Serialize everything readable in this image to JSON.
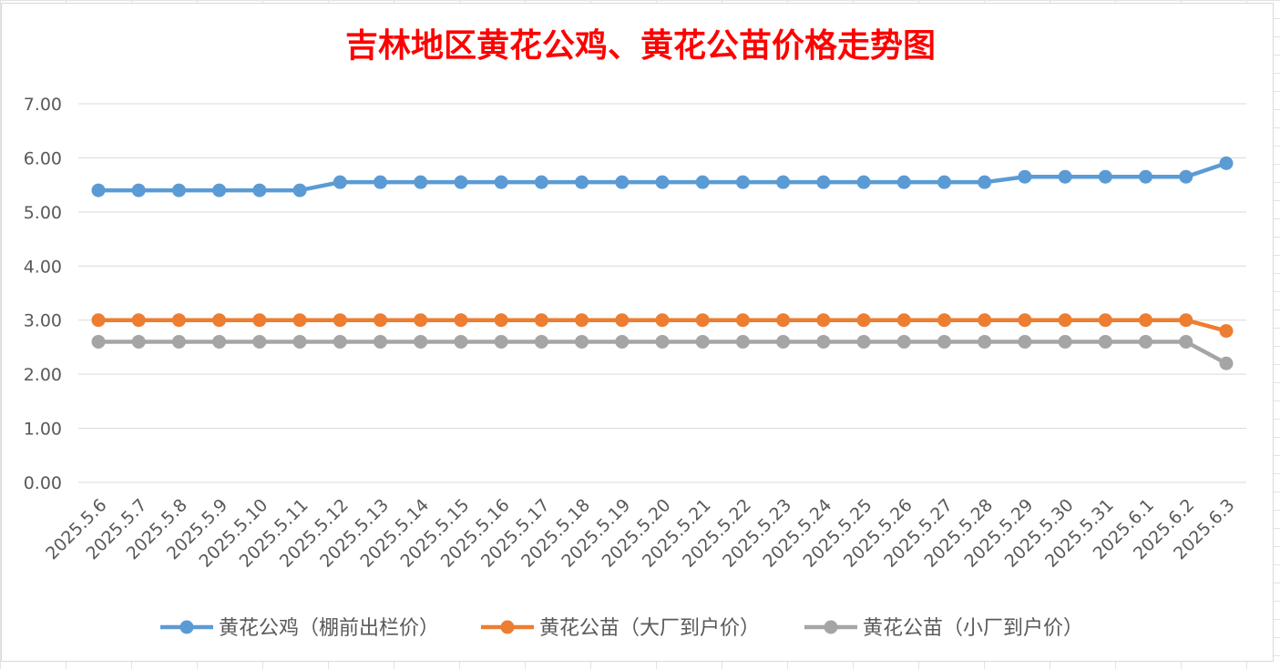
{
  "chart_data": {
    "type": "line",
    "title": "吉林地区黄花公鸡、黄花公苗价格走势图",
    "title_color": "#ff0000",
    "categories": [
      "2025.5.6",
      "2025.5.7",
      "2025.5.8",
      "2025.5.9",
      "2025.5.10",
      "2025.5.11",
      "2025.5.12",
      "2025.5.13",
      "2025.5.14",
      "2025.5.15",
      "2025.5.16",
      "2025.5.17",
      "2025.5.18",
      "2025.5.19",
      "2025.5.20",
      "2025.5.21",
      "2025.5.22",
      "2025.5.23",
      "2025.5.24",
      "2025.5.25",
      "2025.5.26",
      "2025.5.27",
      "2025.5.28",
      "2025.5.29",
      "2025.5.30",
      "2025.5.31",
      "2025.6.1",
      "2025.6.2",
      "2025.6.3"
    ],
    "series": [
      {
        "name": "黄花公鸡（棚前出栏价）",
        "color": "#5b9bd5",
        "values": [
          5.4,
          5.4,
          5.4,
          5.4,
          5.4,
          5.4,
          5.55,
          5.55,
          5.55,
          5.55,
          5.55,
          5.55,
          5.55,
          5.55,
          5.55,
          5.55,
          5.55,
          5.55,
          5.55,
          5.55,
          5.55,
          5.55,
          5.55,
          5.65,
          5.65,
          5.65,
          5.65,
          5.65,
          5.9
        ]
      },
      {
        "name": "黄花公苗（大厂到户价）",
        "color": "#ed7d31",
        "values": [
          3.0,
          3.0,
          3.0,
          3.0,
          3.0,
          3.0,
          3.0,
          3.0,
          3.0,
          3.0,
          3.0,
          3.0,
          3.0,
          3.0,
          3.0,
          3.0,
          3.0,
          3.0,
          3.0,
          3.0,
          3.0,
          3.0,
          3.0,
          3.0,
          3.0,
          3.0,
          3.0,
          3.0,
          2.8
        ]
      },
      {
        "name": "黄花公苗（小厂到户价）",
        "color": "#a5a5a5",
        "values": [
          2.6,
          2.6,
          2.6,
          2.6,
          2.6,
          2.6,
          2.6,
          2.6,
          2.6,
          2.6,
          2.6,
          2.6,
          2.6,
          2.6,
          2.6,
          2.6,
          2.6,
          2.6,
          2.6,
          2.6,
          2.6,
          2.6,
          2.6,
          2.6,
          2.6,
          2.6,
          2.6,
          2.6,
          2.2
        ]
      }
    ],
    "ylim": [
      0,
      7
    ],
    "yticks": [
      "0.00",
      "1.00",
      "2.00",
      "3.00",
      "4.00",
      "5.00",
      "6.00",
      "7.00"
    ],
    "grid": true,
    "legend_position": "bottom"
  }
}
